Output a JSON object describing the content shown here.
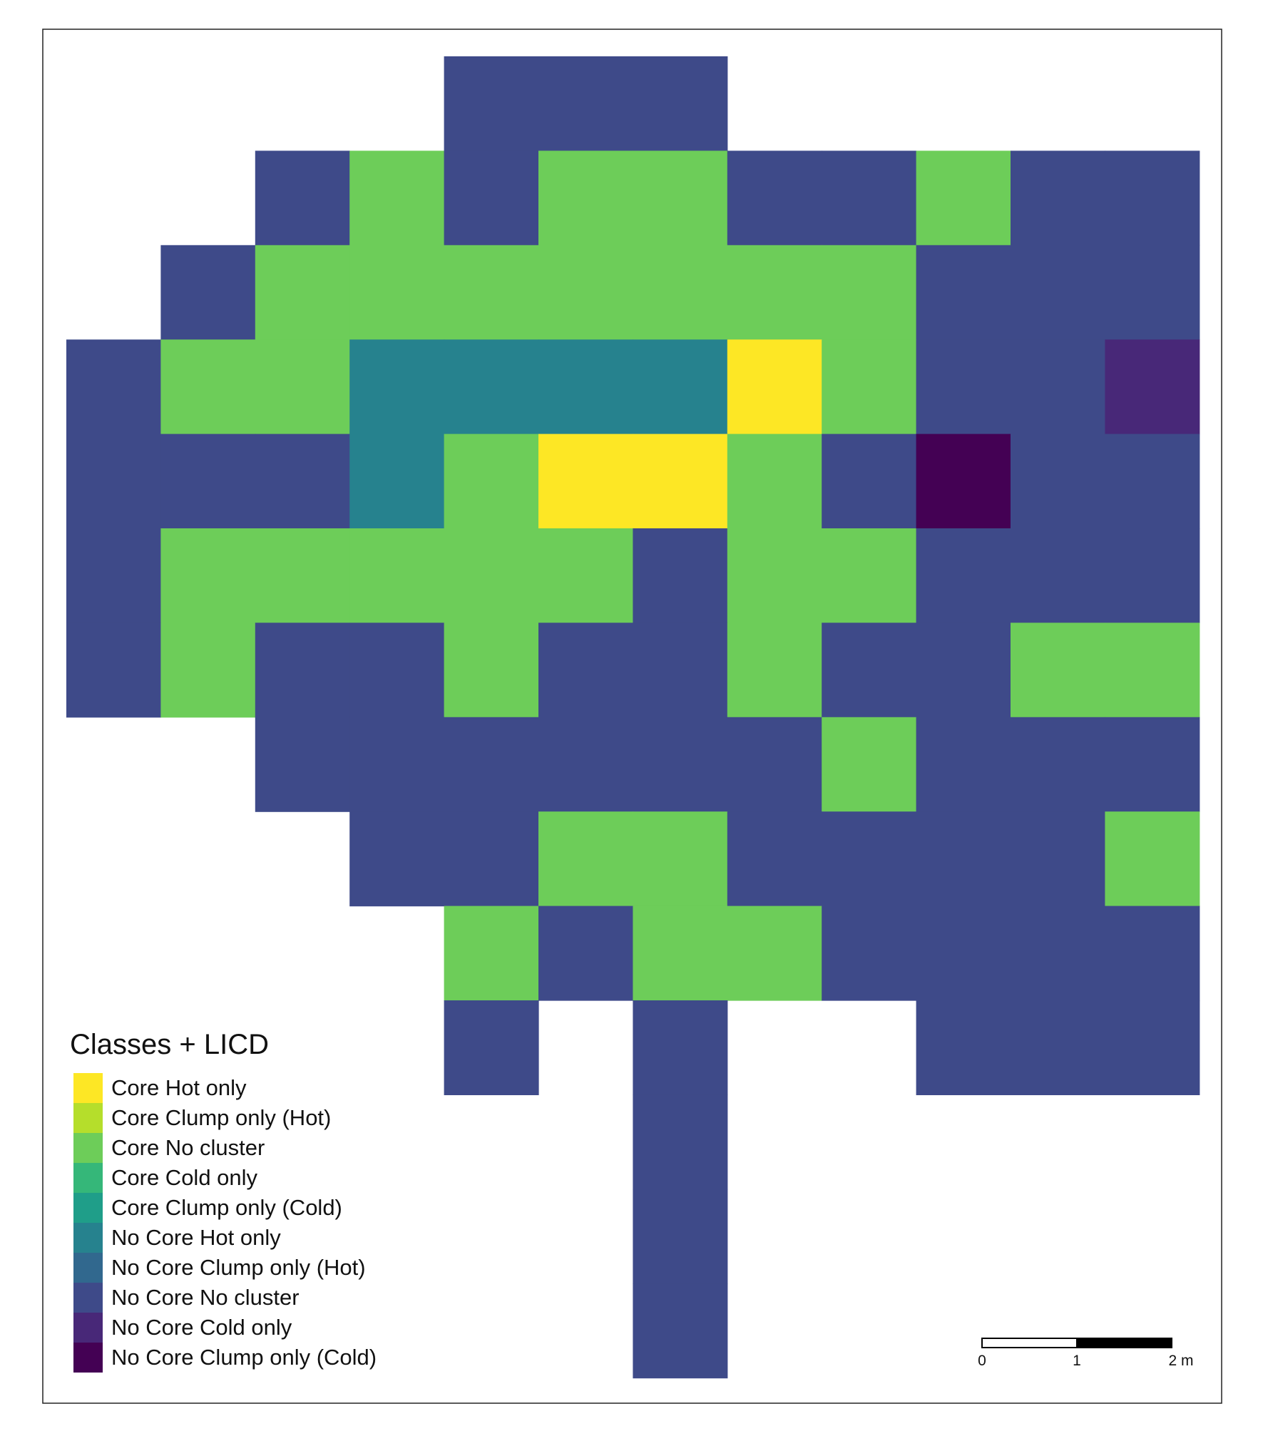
{
  "legend": {
    "title": "Classes + LICD",
    "items": [
      {
        "label": "Core Hot only",
        "color": "#FDE725"
      },
      {
        "label": "Core Clump only (Hot)",
        "color": "#B5DE2B"
      },
      {
        "label": "Core No cluster",
        "color": "#6DCD59"
      },
      {
        "label": "Core Cold only",
        "color": "#35B779"
      },
      {
        "label": "Core Clump only (Cold)",
        "color": "#1F9E89"
      },
      {
        "label": "No Core Hot only",
        "color": "#26828E"
      },
      {
        "label": "No Core Clump only (Hot)",
        "color": "#31688E"
      },
      {
        "label": "No Core No cluster",
        "color": "#3E4A89"
      },
      {
        "label": "No Core Cold only",
        "color": "#482878"
      },
      {
        "label": "No Core Clump only (Cold)",
        "color": "#440154"
      }
    ]
  },
  "scale_bar": {
    "ticks": [
      "0",
      "1",
      "2 m"
    ]
  },
  "grid": {
    "legend_codes": {
      "Y": "Core Hot only",
      "G": "Core No cluster",
      "T": "No Core Hot only",
      "B": "No Core No cluster",
      "P": "No Core Cold only",
      "D": "No Core Clump only (Cold)"
    },
    "rows": [
      "....BBB.....",
      "..BGBGGBBGBB",
      ".BGGGGGGGBBB",
      "BGGTTTTYGBBP",
      "BBBTGYYGBDBB",
      "BGGGGGBGGBBB",
      "BGBBGBBGBBGG",
      "..BBBBBBGBBB",
      "...BBGGBBBBG",
      "....GBGGBBBB",
      "....B.B..BBB",
      "......B.....",
      "......B.....",
      "......B....."
    ]
  }
}
